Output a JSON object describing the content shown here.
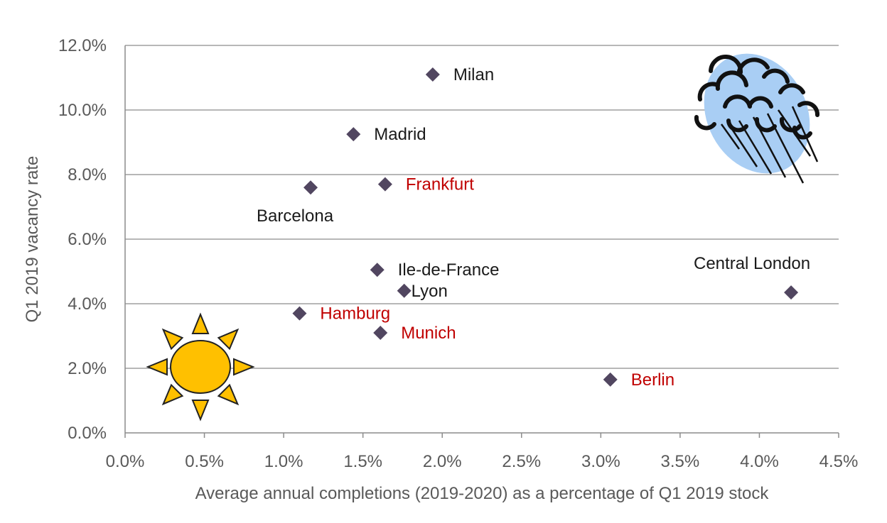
{
  "chart_data": {
    "type": "scatter",
    "title": "",
    "xlabel": "Average annual completions (2019-2020) as a percentage of Q1 2019 stock",
    "ylabel": "Q1 2019 vacancy rate",
    "xlim": [
      0,
      4.5
    ],
    "ylim": [
      0,
      12
    ],
    "x_ticks": [
      "0.0%",
      "0.5%",
      "1.0%",
      "1.5%",
      "2.0%",
      "2.5%",
      "3.0%",
      "3.5%",
      "4.0%",
      "4.5%"
    ],
    "y_ticks": [
      "0.0%",
      "2.0%",
      "4.0%",
      "6.0%",
      "8.0%",
      "10.0%",
      "12.0%"
    ],
    "grid": "horizontal",
    "marker": "diamond",
    "marker_color": "#514660",
    "label_colors": {
      "default": "#1a1a1a",
      "highlight": "#c00000"
    },
    "points": [
      {
        "label": "Milan",
        "x": 1.94,
        "y": 11.1,
        "highlight": false,
        "label_pos": "right"
      },
      {
        "label": "Madrid",
        "x": 1.44,
        "y": 9.25,
        "highlight": false,
        "label_pos": "right"
      },
      {
        "label": "Frankfurt",
        "x": 1.64,
        "y": 7.7,
        "highlight": true,
        "label_pos": "right"
      },
      {
        "label": "Barcelona",
        "x": 1.17,
        "y": 7.6,
        "highlight": false,
        "label_pos": "below"
      },
      {
        "label": "Ile-de-France",
        "x": 1.59,
        "y": 5.05,
        "highlight": false,
        "label_pos": "right"
      },
      {
        "label": "Lyon",
        "x": 1.76,
        "y": 4.4,
        "highlight": false,
        "label_pos": "right-close"
      },
      {
        "label": "Central London",
        "x": 4.2,
        "y": 4.35,
        "highlight": false,
        "label_pos": "above-left"
      },
      {
        "label": "Hamburg",
        "x": 1.1,
        "y": 3.7,
        "highlight": true,
        "label_pos": "right"
      },
      {
        "label": "Munich",
        "x": 1.61,
        "y": 3.1,
        "highlight": true,
        "label_pos": "right"
      },
      {
        "label": "Berlin",
        "x": 3.06,
        "y": 1.65,
        "highlight": true,
        "label_pos": "right"
      }
    ],
    "decorations": [
      {
        "name": "sun-icon",
        "color": "#ffc000"
      },
      {
        "name": "rain-cloud-icon",
        "color": "#a9cef4"
      }
    ]
  }
}
